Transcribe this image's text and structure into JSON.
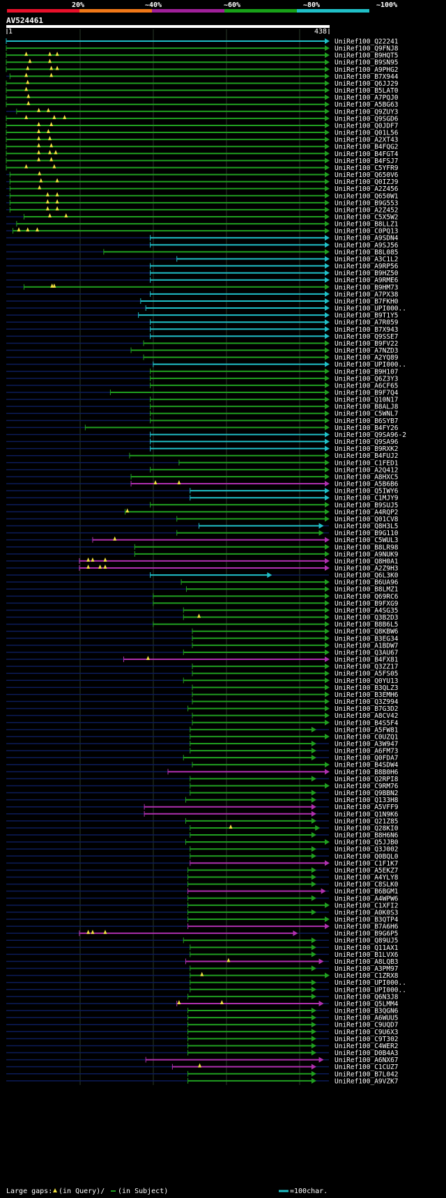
{
  "query": {
    "id": "AV524461",
    "start": "1",
    "end": "438",
    "length": 438
  },
  "scale": {
    "labels": [
      "20%",
      "~40%",
      "~60%",
      "~80%",
      "~100%"
    ],
    "colors": [
      "#e8102a",
      "#f07818",
      "#a0209a",
      "#18a018",
      "#20c0c8"
    ]
  },
  "colors": {
    "cyan": "#20c0c8",
    "green": "#20a020",
    "magenta": "#b030b0",
    "gap": "#f0e040",
    "navy": "#0c1c5a"
  },
  "legend": {
    "large_gaps": "Large gaps:",
    "in_query": "(in Query)/",
    "in_subject": "(in Subject)",
    "scale_note": "=100char."
  },
  "hits": [
    {
      "id": "UniRef100_Q22241",
      "c": "cyan",
      "s": 1,
      "e": 438,
      "g": []
    },
    {
      "id": "UniRef100_Q9FNJ8",
      "c": "green",
      "s": 1,
      "e": 438,
      "g": []
    },
    {
      "id": "UniRef100_B9HQT5",
      "c": "green",
      "s": 1,
      "e": 438,
      "g": [
        28,
        60,
        70
      ]
    },
    {
      "id": "UniRef100_B9SN95",
      "c": "green",
      "s": 1,
      "e": 438,
      "g": [
        33,
        60
      ]
    },
    {
      "id": "UniRef100_A9PHG2",
      "c": "green",
      "s": 1,
      "e": 438,
      "g": [
        30,
        62,
        70
      ]
    },
    {
      "id": "UniRef100_B7X944",
      "c": "green",
      "s": 6,
      "e": 438,
      "g": [
        28,
        62
      ]
    },
    {
      "id": "UniRef100_Q6JJ29",
      "c": "green",
      "s": 1,
      "e": 438,
      "g": [
        30
      ]
    },
    {
      "id": "UniRef100_B5LAT0",
      "c": "green",
      "s": 1,
      "e": 438,
      "g": [
        28
      ]
    },
    {
      "id": "UniRef100_A7PQJ0",
      "c": "green",
      "s": 1,
      "e": 438,
      "g": [
        31
      ]
    },
    {
      "id": "UniRef100_A5BG63",
      "c": "green",
      "s": 1,
      "e": 438,
      "g": [
        31
      ]
    },
    {
      "id": "UniRef100_Q9ZUY3",
      "c": "green",
      "s": 15,
      "e": 438,
      "g": [
        45,
        58
      ]
    },
    {
      "id": "UniRef100_Q9SGD6",
      "c": "green",
      "s": 1,
      "e": 438,
      "g": [
        28,
        66,
        80
      ]
    },
    {
      "id": "UniRef100_Q0JDF7",
      "c": "green",
      "s": 1,
      "e": 438,
      "g": [
        45,
        62
      ]
    },
    {
      "id": "UniRef100_Q01L56",
      "c": "green",
      "s": 1,
      "e": 438,
      "g": [
        45,
        58
      ]
    },
    {
      "id": "UniRef100_A2XT43",
      "c": "green",
      "s": 1,
      "e": 438,
      "g": [
        45,
        60
      ]
    },
    {
      "id": "UniRef100_B4FQG2",
      "c": "green",
      "s": 1,
      "e": 438,
      "g": [
        45,
        62
      ]
    },
    {
      "id": "UniRef100_B4FGT4",
      "c": "green",
      "s": 1,
      "e": 438,
      "g": [
        45,
        60,
        68
      ]
    },
    {
      "id": "UniRef100_B4FSJ7",
      "c": "green",
      "s": 1,
      "e": 438,
      "g": [
        45,
        62
      ]
    },
    {
      "id": "UniRef100_C5YFR9",
      "c": "green",
      "s": 1,
      "e": 438,
      "g": [
        28,
        66
      ]
    },
    {
      "id": "UniRef100_Q650V6",
      "c": "green",
      "s": 6,
      "e": 438,
      "g": [
        46
      ]
    },
    {
      "id": "UniRef100_Q0IZJ9",
      "c": "green",
      "s": 6,
      "e": 438,
      "g": [
        48,
        70
      ]
    },
    {
      "id": "UniRef100_A2Z456",
      "c": "green",
      "s": 6,
      "e": 438,
      "g": [
        46
      ]
    },
    {
      "id": "UniRef100_Q650W1",
      "c": "green",
      "s": 6,
      "e": 438,
      "g": [
        57,
        70
      ]
    },
    {
      "id": "UniRef100_B9G553",
      "c": "green",
      "s": 6,
      "e": 438,
      "g": [
        57,
        70
      ]
    },
    {
      "id": "UniRef100_A2Z452",
      "c": "green",
      "s": 6,
      "e": 438,
      "g": [
        57,
        70
      ]
    },
    {
      "id": "UniRef100_C5X5W2",
      "c": "green",
      "s": 25,
      "e": 438,
      "g": [
        60,
        82
      ]
    },
    {
      "id": "UniRef100_B8LLZ1",
      "c": "green",
      "s": 15,
      "e": 438,
      "g": []
    },
    {
      "id": "UniRef100_C0PQ13",
      "c": "green",
      "s": 10,
      "e": 438,
      "g": [
        18,
        30,
        43
      ]
    },
    {
      "id": "UniRef100_A9SDN4",
      "c": "cyan",
      "s": 196,
      "e": 438,
      "g": []
    },
    {
      "id": "UniRef100_A9SJ56",
      "c": "cyan",
      "s": 196,
      "e": 438,
      "g": []
    },
    {
      "id": "UniRef100_B8L085",
      "c": "green",
      "s": 133,
      "e": 438,
      "g": []
    },
    {
      "id": "UniRef100_A3C1L2",
      "c": "cyan",
      "s": 232,
      "e": 438,
      "g": []
    },
    {
      "id": "UniRef100_A9RP56",
      "c": "cyan",
      "s": 196,
      "e": 438,
      "g": []
    },
    {
      "id": "UniRef100_B9HZ50",
      "c": "cyan",
      "s": 196,
      "e": 438,
      "g": []
    },
    {
      "id": "UniRef100_A9RME6",
      "c": "cyan",
      "s": 196,
      "e": 438,
      "g": []
    },
    {
      "id": "UniRef100_B9HM73",
      "c": "green",
      "s": 25,
      "e": 438,
      "g": [
        63,
        66
      ]
    },
    {
      "id": "UniRef100_A7PX38",
      "c": "cyan",
      "s": 196,
      "e": 438,
      "g": []
    },
    {
      "id": "UniRef100_B7FKH0",
      "c": "cyan",
      "s": 183,
      "e": 438,
      "g": []
    },
    {
      "id": "UniRef100_UPI000..",
      "c": "cyan",
      "s": 190,
      "e": 438,
      "g": []
    },
    {
      "id": "UniRef100_B9T1Y5",
      "c": "cyan",
      "s": 180,
      "e": 438,
      "g": []
    },
    {
      "id": "UniRef100_A7R059",
      "c": "cyan",
      "s": 196,
      "e": 438,
      "g": []
    },
    {
      "id": "UniRef100_B7X943",
      "c": "cyan",
      "s": 196,
      "e": 438,
      "g": []
    },
    {
      "id": "UniRef100_Q9SSE7",
      "c": "cyan",
      "s": 196,
      "e": 438,
      "g": []
    },
    {
      "id": "UniRef100_B9FV22",
      "c": "green",
      "s": 187,
      "e": 438,
      "g": []
    },
    {
      "id": "UniRef100_A7NZD3",
      "c": "green",
      "s": 170,
      "e": 438,
      "g": []
    },
    {
      "id": "UniRef100_A2YQ89",
      "c": "green",
      "s": 187,
      "e": 438,
      "g": []
    },
    {
      "id": "UniRef100_UPI000..",
      "c": "cyan",
      "s": 200,
      "e": 438,
      "g": []
    },
    {
      "id": "UniRef100_B9H107",
      "c": "green",
      "s": 196,
      "e": 438,
      "g": []
    },
    {
      "id": "UniRef100_Q6Z3Y3",
      "c": "green",
      "s": 196,
      "e": 438,
      "g": []
    },
    {
      "id": "UniRef100_A6CF65",
      "c": "green",
      "s": 196,
      "e": 438,
      "g": []
    },
    {
      "id": "UniRef100_B9F7Q4",
      "c": "green",
      "s": 142,
      "e": 438,
      "g": []
    },
    {
      "id": "UniRef100_Q10N17",
      "c": "green",
      "s": 196,
      "e": 438,
      "g": []
    },
    {
      "id": "UniRef100_B8ALJ8",
      "c": "green",
      "s": 196,
      "e": 438,
      "g": []
    },
    {
      "id": "UniRef100_C5WNL7",
      "c": "green",
      "s": 196,
      "e": 438,
      "g": []
    },
    {
      "id": "UniRef100_B6SYB7",
      "c": "green",
      "s": 196,
      "e": 438,
      "g": []
    },
    {
      "id": "UniRef100_B4FY26",
      "c": "green",
      "s": 108,
      "e": 438,
      "g": []
    },
    {
      "id": "UniRef100_Q9SA96-2",
      "c": "cyan",
      "s": 196,
      "e": 438,
      "g": []
    },
    {
      "id": "UniRef100_Q9SA96",
      "c": "cyan",
      "s": 196,
      "e": 438,
      "g": []
    },
    {
      "id": "UniRef100_B9RXK2",
      "c": "cyan",
      "s": 196,
      "e": 438,
      "g": []
    },
    {
      "id": "UniRef100_B4FUJ2",
      "c": "green",
      "s": 168,
      "e": 438,
      "g": []
    },
    {
      "id": "UniRef100_C1FED1",
      "c": "green",
      "s": 235,
      "e": 438,
      "g": []
    },
    {
      "id": "UniRef100_A2Q412",
      "c": "green",
      "s": 196,
      "e": 438,
      "g": []
    },
    {
      "id": "UniRef100_A8HXC5",
      "c": "green",
      "s": 170,
      "e": 438,
      "g": []
    },
    {
      "id": "UniRef100_A5B6B6",
      "c": "magenta",
      "s": 170,
      "e": 438,
      "g": [
        203,
        235
      ]
    },
    {
      "id": "UniRef100_Q5IWY6",
      "c": "cyan",
      "s": 250,
      "e": 438,
      "g": []
    },
    {
      "id": "UniRef100_C1MJY9",
      "c": "cyan",
      "s": 250,
      "e": 438,
      "g": []
    },
    {
      "id": "UniRef100_B9SUJ5",
      "c": "green",
      "s": 196,
      "e": 438,
      "g": []
    },
    {
      "id": "UniRef100_A4RQP2",
      "c": "green",
      "s": 162,
      "e": 438,
      "g": [
        165
      ]
    },
    {
      "id": "UniRef100_Q01CV8",
      "c": "green",
      "s": 232,
      "e": 438,
      "g": []
    },
    {
      "id": "UniRef100_Q8H3L5",
      "c": "cyan",
      "s": 262,
      "e": 430,
      "g": []
    },
    {
      "id": "UniRef100_B9G110",
      "c": "green",
      "s": 232,
      "e": 430,
      "g": []
    },
    {
      "id": "UniRef100_C5WUL3",
      "c": "magenta",
      "s": 118,
      "e": 438,
      "g": [
        148
      ]
    },
    {
      "id": "UniRef100_B8LR98",
      "c": "green",
      "s": 175,
      "e": 438,
      "g": []
    },
    {
      "id": "UniRef100_A9NUK9",
      "c": "green",
      "s": 175,
      "e": 438,
      "g": []
    },
    {
      "id": "UniRef100_Q8H0A1",
      "c": "magenta",
      "s": 100,
      "e": 438,
      "g": [
        112,
        118,
        135
      ]
    },
    {
      "id": "UniRef100_A2Z9H3",
      "c": "magenta",
      "s": 100,
      "e": 438,
      "g": [
        112,
        128,
        135
      ]
    },
    {
      "id": "UniRef100_Q6L3K0",
      "c": "cyan",
      "s": 196,
      "e": 360,
      "g": []
    },
    {
      "id": "UniRef100_B6UA96",
      "c": "green",
      "s": 238,
      "e": 438,
      "g": []
    },
    {
      "id": "UniRef100_B8LMZ1",
      "c": "green",
      "s": 245,
      "e": 438,
      "g": []
    },
    {
      "id": "UniRef100_Q69RC6",
      "c": "green",
      "s": 200,
      "e": 438,
      "g": []
    },
    {
      "id": "UniRef100_B9FXG9",
      "c": "green",
      "s": 200,
      "e": 438,
      "g": []
    },
    {
      "id": "UniRef100_A4SG35",
      "c": "green",
      "s": 241,
      "e": 438,
      "g": []
    },
    {
      "id": "UniRef100_Q3B2D3",
      "c": "green",
      "s": 241,
      "e": 438,
      "g": [
        262
      ]
    },
    {
      "id": "UniRef100_B8B6L5",
      "c": "green",
      "s": 200,
      "e": 438,
      "g": []
    },
    {
      "id": "UniRef100_Q8KBW6",
      "c": "green",
      "s": 253,
      "e": 438,
      "g": []
    },
    {
      "id": "UniRef100_B3EG34",
      "c": "green",
      "s": 253,
      "e": 438,
      "g": []
    },
    {
      "id": "UniRef100_A1BDW7",
      "c": "green",
      "s": 253,
      "e": 438,
      "g": []
    },
    {
      "id": "UniRef100_Q3AU67",
      "c": "green",
      "s": 241,
      "e": 438,
      "g": []
    },
    {
      "id": "UniRef100_B4FX81",
      "c": "magenta",
      "s": 160,
      "e": 438,
      "g": [
        193
      ]
    },
    {
      "id": "UniRef100_Q3ZZ17",
      "c": "green",
      "s": 253,
      "e": 438,
      "g": []
    },
    {
      "id": "UniRef100_A5FS05",
      "c": "green",
      "s": 253,
      "e": 438,
      "g": []
    },
    {
      "id": "UniRef100_Q0YU13",
      "c": "green",
      "s": 241,
      "e": 438,
      "g": []
    },
    {
      "id": "UniRef100_B3QLZ3",
      "c": "green",
      "s": 253,
      "e": 438,
      "g": []
    },
    {
      "id": "UniRef100_B3EMH6",
      "c": "green",
      "s": 253,
      "e": 438,
      "g": []
    },
    {
      "id": "UniRef100_Q3Z994",
      "c": "green",
      "s": 253,
      "e": 438,
      "g": []
    },
    {
      "id": "UniRef100_B7G3D2",
      "c": "green",
      "s": 247,
      "e": 438,
      "g": []
    },
    {
      "id": "UniRef100_A8CV42",
      "c": "green",
      "s": 253,
      "e": 438,
      "g": []
    },
    {
      "id": "UniRef100_B4S5F4",
      "c": "green",
      "s": 253,
      "e": 438,
      "g": []
    },
    {
      "id": "UniRef100_A5FW81",
      "c": "green",
      "s": 250,
      "e": 420,
      "g": []
    },
    {
      "id": "UniRef100_C0UZQ1",
      "c": "green",
      "s": 250,
      "e": 438,
      "g": []
    },
    {
      "id": "UniRef100_A3W947",
      "c": "green",
      "s": 250,
      "e": 420,
      "g": []
    },
    {
      "id": "UniRef100_A6FM73",
      "c": "green",
      "s": 250,
      "e": 420,
      "g": []
    },
    {
      "id": "UniRef100_Q0FDA7",
      "c": "green",
      "s": 241,
      "e": 420,
      "g": []
    },
    {
      "id": "UniRef100_B4SDW4",
      "c": "green",
      "s": 253,
      "e": 438,
      "g": []
    },
    {
      "id": "UniRef100_B8B0H6",
      "c": "magenta",
      "s": 220,
      "e": 438,
      "g": []
    },
    {
      "id": "UniRef100_Q2RPI8",
      "c": "green",
      "s": 250,
      "e": 420,
      "g": []
    },
    {
      "id": "UniRef100_C9RM76",
      "c": "green",
      "s": 250,
      "e": 438,
      "g": []
    },
    {
      "id": "UniRef100_Q9BBN2",
      "c": "green",
      "s": 250,
      "e": 420,
      "g": []
    },
    {
      "id": "UniRef100_Q133H8",
      "c": "green",
      "s": 244,
      "e": 420,
      "g": []
    },
    {
      "id": "UniRef100_A5VFF9",
      "c": "magenta",
      "s": 188,
      "e": 420,
      "g": []
    },
    {
      "id": "UniRef100_Q1N9K6",
      "c": "magenta",
      "s": 188,
      "e": 420,
      "g": []
    },
    {
      "id": "UniRef100_Q21Z85",
      "c": "green",
      "s": 244,
      "e": 420,
      "g": []
    },
    {
      "id": "UniRef100_Q28KI0",
      "c": "green",
      "s": 250,
      "e": 425,
      "g": [
        305
      ]
    },
    {
      "id": "UniRef100_B8H6N6",
      "c": "green",
      "s": 250,
      "e": 420,
      "g": []
    },
    {
      "id": "UniRef100_Q5JJB0",
      "c": "green",
      "s": 244,
      "e": 438,
      "g": []
    },
    {
      "id": "UniRef100_Q3J002",
      "c": "green",
      "s": 250,
      "e": 420,
      "g": []
    },
    {
      "id": "UniRef100_Q0BQL0",
      "c": "green",
      "s": 250,
      "e": 420,
      "g": []
    },
    {
      "id": "UniRef100_C1F1K7",
      "c": "magenta",
      "s": 250,
      "e": 438,
      "g": []
    },
    {
      "id": "UniRef100_A5EKZ7",
      "c": "green",
      "s": 247,
      "e": 420,
      "g": []
    },
    {
      "id": "UniRef100_A4YLY8",
      "c": "green",
      "s": 247,
      "e": 420,
      "g": []
    },
    {
      "id": "UniRef100_C8SLK0",
      "c": "green",
      "s": 247,
      "e": 420,
      "g": []
    },
    {
      "id": "UniRef100_B6BGM1",
      "c": "magenta",
      "s": 247,
      "e": 433,
      "g": []
    },
    {
      "id": "UniRef100_A4WPW6",
      "c": "green",
      "s": 247,
      "e": 420,
      "g": []
    },
    {
      "id": "UniRef100_C1XFI2",
      "c": "green",
      "s": 247,
      "e": 438,
      "g": []
    },
    {
      "id": "UniRef100_A0K0S3",
      "c": "green",
      "s": 247,
      "e": 420,
      "g": []
    },
    {
      "id": "UniRef100_B3QTP4",
      "c": "green",
      "s": 247,
      "e": 438,
      "g": []
    },
    {
      "id": "UniRef100_B7A6H6",
      "c": "magenta",
      "s": 247,
      "e": 438,
      "g": []
    },
    {
      "id": "UniRef100_B9G6P5",
      "c": "magenta",
      "s": 100,
      "e": 395,
      "g": [
        112,
        118,
        135
      ]
    },
    {
      "id": "UniRef100_Q89UJ5",
      "c": "green",
      "s": 241,
      "e": 420,
      "g": []
    },
    {
      "id": "UniRef100_Q11AX1",
      "c": "green",
      "s": 250,
      "e": 420,
      "g": []
    },
    {
      "id": "UniRef100_B1LVX6",
      "c": "green",
      "s": 250,
      "e": 420,
      "g": []
    },
    {
      "id": "UniRef100_A8LQB3",
      "c": "magenta",
      "s": 244,
      "e": 430,
      "g": [
        302
      ]
    },
    {
      "id": "UniRef100_A3PM97",
      "c": "green",
      "s": 250,
      "e": 420,
      "g": []
    },
    {
      "id": "UniRef100_C1ZRX8",
      "c": "green",
      "s": 250,
      "e": 438,
      "g": [
        266
      ]
    },
    {
      "id": "UniRef100_UPI000..",
      "c": "green",
      "s": 250,
      "e": 420,
      "g": []
    },
    {
      "id": "UniRef100_UPI000..",
      "c": "green",
      "s": 250,
      "e": 420,
      "g": []
    },
    {
      "id": "UniRef100_Q6N3J8",
      "c": "green",
      "s": 247,
      "e": 420,
      "g": []
    },
    {
      "id": "UniRef100_Q5LMM4",
      "c": "magenta",
      "s": 232,
      "e": 430,
      "g": [
        235,
        293
      ]
    },
    {
      "id": "UniRef100_B3QGN6",
      "c": "green",
      "s": 247,
      "e": 420,
      "g": []
    },
    {
      "id": "UniRef100_A6WUU5",
      "c": "green",
      "s": 247,
      "e": 420,
      "g": []
    },
    {
      "id": "UniRef100_C9UQD7",
      "c": "green",
      "s": 247,
      "e": 420,
      "g": []
    },
    {
      "id": "UniRef100_C9U6X3",
      "c": "green",
      "s": 247,
      "e": 420,
      "g": []
    },
    {
      "id": "UniRef100_C9T302",
      "c": "green",
      "s": 247,
      "e": 420,
      "g": []
    },
    {
      "id": "UniRef100_C4WER2",
      "c": "green",
      "s": 247,
      "e": 420,
      "g": []
    },
    {
      "id": "UniRef100_D0B4A3",
      "c": "green",
      "s": 247,
      "e": 420,
      "g": []
    },
    {
      "id": "UniRef100_A6NX67",
      "c": "magenta",
      "s": 190,
      "e": 430,
      "g": []
    },
    {
      "id": "UniRef100_C1CUZ7",
      "c": "magenta",
      "s": 226,
      "e": 420,
      "g": [
        263
      ]
    },
    {
      "id": "UniRef100_B7L042",
      "c": "green",
      "s": 247,
      "e": 420,
      "g": []
    },
    {
      "id": "UniRef100_A9VZK7",
      "c": "green",
      "s": 247,
      "e": 420,
      "g": []
    }
  ]
}
